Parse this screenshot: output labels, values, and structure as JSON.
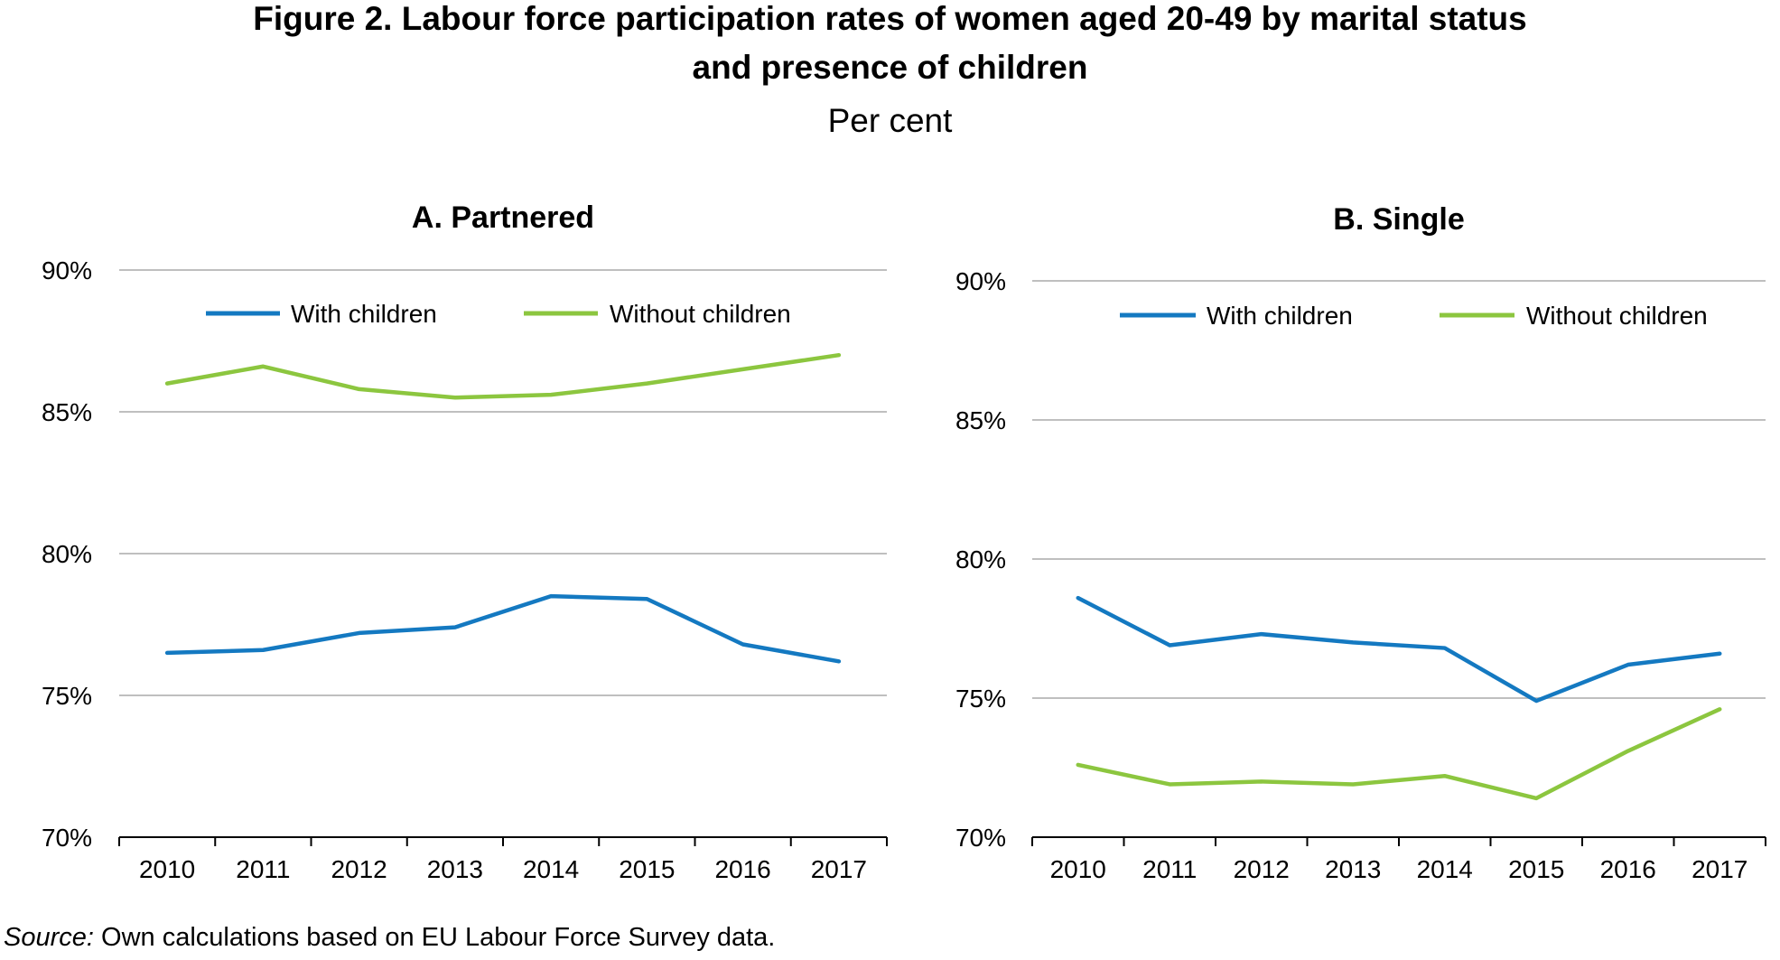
{
  "figure": {
    "title_line1": "Figure 2. Labour force participation rates of women aged 20-49 by marital status",
    "title_line2": "and presence of children",
    "subtitle": "Per cent"
  },
  "source": {
    "label": "Source:",
    "text": "Own calculations based on EU Labour Force Survey data."
  },
  "colors": {
    "with_children": "#1479c1",
    "without_children": "#8cc63f",
    "grid": "#bfbfbf",
    "axis": "#000000"
  },
  "chart_data": [
    {
      "type": "line",
      "title": "A. Partnered",
      "x": [
        "2010",
        "2011",
        "2012",
        "2013",
        "2014",
        "2015",
        "2016",
        "2017"
      ],
      "ylim": [
        70,
        90
      ],
      "yticks": [
        70,
        75,
        80,
        85,
        90
      ],
      "ytick_labels": [
        "70%",
        "75%",
        "80%",
        "85%",
        "90%"
      ],
      "grid": true,
      "legend": "top",
      "series": [
        {
          "name": "With children",
          "values": [
            76.5,
            76.6,
            77.2,
            77.4,
            78.5,
            78.4,
            76.8,
            76.2
          ]
        },
        {
          "name": "Without children",
          "values": [
            86.0,
            86.6,
            85.8,
            85.5,
            85.6,
            86.0,
            86.5,
            87.0
          ]
        }
      ]
    },
    {
      "type": "line",
      "title": "B. Single",
      "x": [
        "2010",
        "2011",
        "2012",
        "2013",
        "2014",
        "2015",
        "2016",
        "2017"
      ],
      "ylim": [
        70,
        90
      ],
      "yticks": [
        70,
        75,
        80,
        85,
        90
      ],
      "ytick_labels": [
        "70%",
        "75%",
        "80%",
        "85%",
        "90%"
      ],
      "grid": true,
      "legend": "top",
      "series": [
        {
          "name": "With children",
          "values": [
            78.6,
            76.9,
            77.3,
            77.0,
            76.8,
            74.9,
            76.2,
            76.6
          ]
        },
        {
          "name": "Without children",
          "values": [
            72.6,
            71.9,
            72.0,
            71.9,
            72.2,
            71.4,
            73.1,
            74.6
          ]
        }
      ]
    }
  ]
}
